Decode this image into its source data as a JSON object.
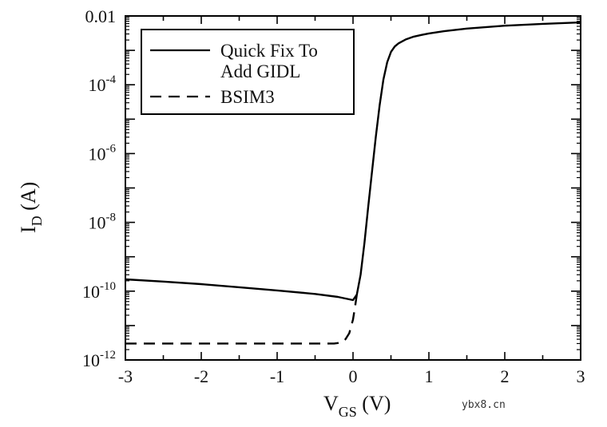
{
  "chart_data": {
    "type": "line",
    "xlabel_main": "V",
    "xlabel_sub": "GS",
    "xlabel_unit": " (V)",
    "ylabel_main": "I",
    "ylabel_sub": "D",
    "ylabel_unit": " (A)",
    "xlim": [
      -3,
      3
    ],
    "ylim": [
      1e-12,
      0.01
    ],
    "y_scale": "log",
    "x_ticks": [
      {
        "value": -3,
        "label": "-3"
      },
      {
        "value": -2,
        "label": "-2"
      },
      {
        "value": -1,
        "label": "-1"
      },
      {
        "value": 0,
        "label": "0"
      },
      {
        "value": 1,
        "label": "1"
      },
      {
        "value": 2,
        "label": "2"
      },
      {
        "value": 3,
        "label": "3"
      }
    ],
    "y_ticks": [
      {
        "value": 0.01,
        "base": "0.01",
        "exp": ""
      },
      {
        "value": 0.0001,
        "base": "10",
        "exp": "-4"
      },
      {
        "value": 1e-06,
        "base": "10",
        "exp": "-6"
      },
      {
        "value": 1e-08,
        "base": "10",
        "exp": "-8"
      },
      {
        "value": 1e-10,
        "base": "10",
        "exp": "-10"
      },
      {
        "value": 1e-12,
        "base": "10",
        "exp": "-12"
      }
    ],
    "grid": false,
    "legend_position": "top-left",
    "series": [
      {
        "name": "Quick Fix To Add GIDL",
        "name_line1": "Quick Fix To",
        "name_line2": "Add GIDL",
        "style": "solid",
        "color": "#000000",
        "x": [
          -3.0,
          -2.5,
          -2.0,
          -1.5,
          -1.0,
          -0.5,
          -0.2,
          0.0,
          0.05,
          0.1,
          0.15,
          0.2,
          0.25,
          0.3,
          0.35,
          0.4,
          0.45,
          0.5,
          0.55,
          0.6,
          0.7,
          0.8,
          0.9,
          1.0,
          1.2,
          1.5,
          2.0,
          2.5,
          3.0
        ],
        "y": [
          2.2e-10,
          1.9e-10,
          1.6e-10,
          1.3e-10,
          1.05e-10,
          8.3e-11,
          6.8e-11,
          5.5e-11,
          8e-11,
          3e-10,
          2.5e-09,
          2.8e-08,
          3e-07,
          3e-06,
          2.5e-05,
          0.00014,
          0.00045,
          0.0009,
          0.0013,
          0.0016,
          0.0021,
          0.0025,
          0.0028,
          0.0031,
          0.0036,
          0.0043,
          0.0052,
          0.0059,
          0.0065
        ]
      },
      {
        "name": "BSIM3",
        "style": "dashed",
        "color": "#000000",
        "x": [
          -3.0,
          -2.5,
          -2.0,
          -1.5,
          -1.0,
          -0.5,
          -0.25,
          -0.15,
          -0.1,
          -0.05,
          0.0,
          0.03,
          0.05
        ],
        "y": [
          3e-12,
          3e-12,
          3e-12,
          3e-12,
          3e-12,
          3e-12,
          3e-12,
          3.2e-12,
          4e-12,
          6e-12,
          1.5e-11,
          4e-11,
          8e-11
        ]
      }
    ]
  },
  "watermark": "ybx8.cn"
}
